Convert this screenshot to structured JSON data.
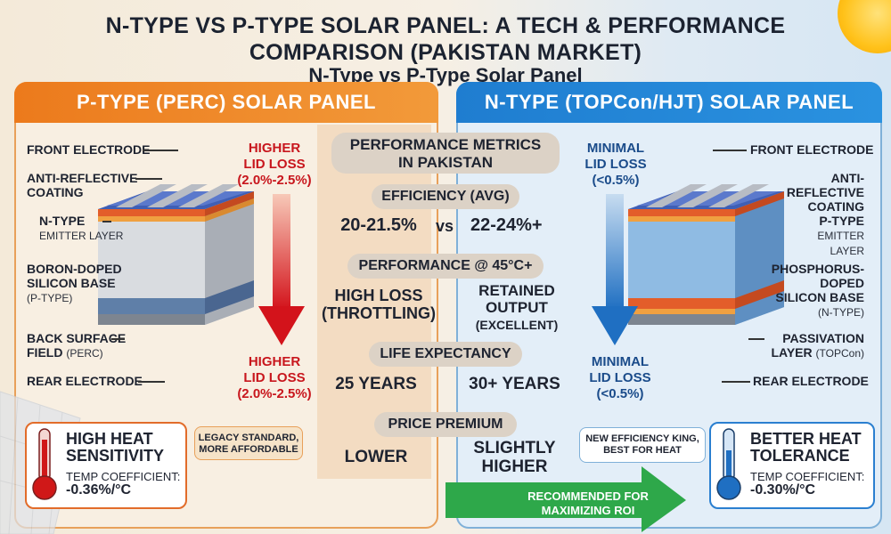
{
  "title": "N-TYPE VS P-TYPE SOLAR PANEL: A TECH & PERFORMANCE COMPARISON (PAKISTAN MARKET)",
  "subtitle": "N-Type vs P-Type Solar Panel",
  "left": {
    "header": "P-TYPE (PERC) SOLAR PANEL",
    "layers": {
      "front_electrode": "FRONT ELECTRODE",
      "anti_reflective_1": "ANTI-REFLECTIVE",
      "anti_reflective_2": "COATING",
      "emitter_1": "N-TYPE",
      "emitter_2": "EMITTER LAYER",
      "base_1": "BORON-DOPED",
      "base_2": "SILICON BASE",
      "base_3": "(P-TYPE)",
      "bsf_1": "BACK SURFACE",
      "bsf_2": "FIELD",
      "bsf_3": "(PERC)",
      "rear_electrode": "REAR ELECTRODE"
    },
    "lid_top_1": "HIGHER",
    "lid_top_2": "LID LOSS",
    "lid_top_3": "(2.0%-2.5%)",
    "lid_bottom_1": "HIGHER",
    "lid_bottom_2": "LID LOSS",
    "lid_bottom_3": "(2.0%-2.5%)",
    "heat_title_1": "HIGH HEAT",
    "heat_title_2": "SENSITIVITY",
    "temp_label": "TEMP COEFFICIENT:",
    "temp_value": "-0.36%/°C",
    "note_1": "LEGACY STANDARD,",
    "note_2": "MORE AFFORDABLE"
  },
  "right": {
    "header": "N-TYPE (TOPCon/HJT) SOLAR PANEL",
    "layers": {
      "front_electrode": "FRONT ELECTRODE",
      "anti_reflective_1": "ANTI-REFLECTIVE",
      "anti_reflective_2": "COATING",
      "emitter_1": "P-TYPE",
      "emitter_2": "EMITTER LAYER",
      "base_1": "PHOSPHORUS-DOPED",
      "base_2": "SILICON BASE",
      "base_3": "(N-TYPE)",
      "passivation_1": "PASSIVATION",
      "passivation_2": "LAYER",
      "passivation_3": "(TOPCon)",
      "rear_electrode": "REAR ELECTRODE"
    },
    "lid_top_1": "MINIMAL",
    "lid_top_2": "LID LOSS",
    "lid_top_3": "(<0.5%)",
    "lid_bottom_1": "MINIMAL",
    "lid_bottom_2": "LID LOSS",
    "lid_bottom_3": "(<0.5%)",
    "heat_title_1": "BETTER HEAT",
    "heat_title_2": "TOLERANCE",
    "temp_label": "TEMP COEFFICIENT:",
    "temp_value": "-0.30%/°C",
    "note_1": "NEW EFFICIENCY KING,",
    "note_2": "BEST FOR HEAT",
    "roi_1": "RECOMMENDED FOR",
    "roi_2": "MAXIMIZING ROI"
  },
  "metrics": {
    "heading_1": "PERFORMANCE METRICS",
    "heading_2": "IN PAKISTAN",
    "efficiency": {
      "label": "EFFICIENCY (AVG)",
      "p": "20-21.5%",
      "vs": "vs",
      "n": "22-24%+"
    },
    "heat": {
      "label": "PERFORMANCE @ 45°C+",
      "p_1": "HIGH LOSS",
      "p_2": "(THROTTLING)",
      "n_1": "RETAINED",
      "n_2": "OUTPUT",
      "n_3": "(EXCELLENT)"
    },
    "life": {
      "label": "LIFE EXPECTANCY",
      "p": "25 YEARS",
      "n": "30+ YEARS"
    },
    "price": {
      "label": "PRICE PREMIUM",
      "p": "LOWER",
      "n_1": "SLIGHTLY",
      "n_2": "HIGHER"
    }
  },
  "colors": {
    "orange": "#ec7a1c",
    "blue": "#1f7dd0",
    "red": "#c8161d",
    "green": "#2ea84a"
  }
}
